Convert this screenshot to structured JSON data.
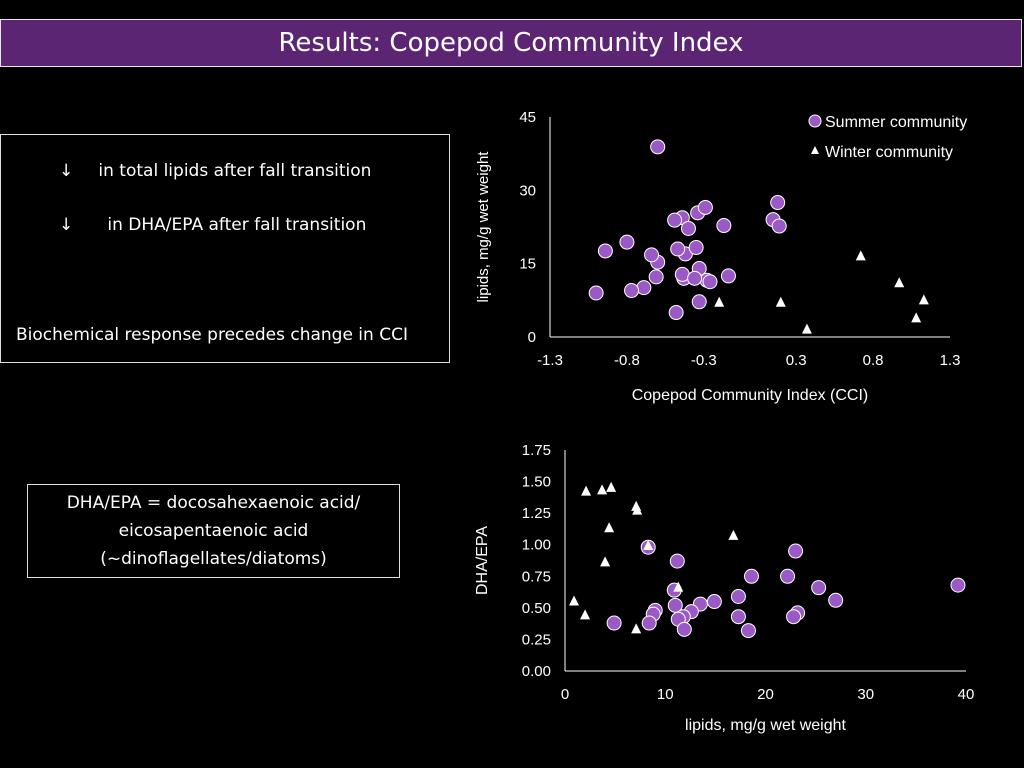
{
  "slide": {
    "title": "Results: Copepod Community Index"
  },
  "notes_box": {
    "line1_arrow": "↓",
    "line1": "in total lipids after fall transition",
    "line2_arrow": "↓",
    "line2": "in DHA/EPA after fall transition",
    "line3": "Biochemical response precedes change in CCI"
  },
  "definition_box": {
    "line1": "DHA/EPA = docosahexaenoic acid/",
    "line2": "eicosapentaenoic acid",
    "line3": "(~dinoflagellates/diatoms)"
  },
  "colors": {
    "title_bar": "#5c2574",
    "summer_marker": "#9b59c6",
    "winter_marker": "#ffffff",
    "axis": "#ffffff"
  },
  "chart_data": [
    {
      "type": "scatter",
      "title": "",
      "xlabel": "Copepod Community Index (CCI)",
      "ylabel": "lipids, mg/g wet weight",
      "xlim": [
        -1.3,
        1.3
      ],
      "ylim": [
        0,
        45
      ],
      "xticks": [
        -1.3,
        -0.8,
        -0.3,
        0.3,
        0.8,
        1.3
      ],
      "xtick_labels": [
        "-1.3",
        "-0.8",
        "-0.3",
        "0.3",
        "0.8",
        "1.3"
      ],
      "yticks": [
        0,
        15,
        30,
        45
      ],
      "ytick_labels": [
        "0",
        "15",
        "30",
        "45"
      ],
      "legend_position": "top-right",
      "series": [
        {
          "name": "Summer community",
          "marker": "circle",
          "points": [
            [
              -0.6,
              38.9
            ],
            [
              -0.44,
              24.4
            ],
            [
              -0.8,
              19.4
            ],
            [
              -0.69,
              10.1
            ],
            [
              -0.6,
              15.3
            ],
            [
              -0.4,
              22.2
            ],
            [
              -0.28,
              11.6
            ],
            [
              -0.33,
              14.0
            ],
            [
              -0.43,
              12.0
            ],
            [
              -0.14,
              12.5
            ],
            [
              -0.94,
              17.6
            ],
            [
              -0.42,
              17.0
            ],
            [
              -0.44,
              12.8
            ],
            [
              -0.36,
              12.0
            ],
            [
              -0.26,
              11.3
            ],
            [
              -0.35,
              18.3
            ],
            [
              -0.33,
              7.2
            ],
            [
              -0.34,
              25.4
            ],
            [
              -0.64,
              16.8
            ],
            [
              0.15,
              24.0
            ],
            [
              -0.29,
              26.5
            ],
            [
              -0.17,
              22.8
            ],
            [
              0.19,
              22.7
            ],
            [
              0.18,
              27.5
            ],
            [
              -0.48,
              5.0
            ],
            [
              -1.0,
              9.0
            ],
            [
              -0.77,
              9.5
            ],
            [
              -0.61,
              12.3
            ],
            [
              -0.47,
              18.0
            ],
            [
              -0.49,
              23.9
            ]
          ]
        },
        {
          "name": "Winter community",
          "marker": "triangle",
          "points": [
            [
              -0.2,
              7.0
            ],
            [
              0.2,
              7.0
            ],
            [
              0.37,
              1.5
            ],
            [
              0.72,
              16.5
            ],
            [
              0.97,
              11.0
            ],
            [
              1.08,
              3.8
            ],
            [
              1.13,
              7.5
            ]
          ]
        }
      ]
    },
    {
      "type": "scatter",
      "title": "",
      "xlabel": "lipids, mg/g wet weight",
      "ylabel": "DHA/EPA",
      "xlim": [
        0,
        40
      ],
      "ylim": [
        0,
        1.75
      ],
      "xticks": [
        0,
        10,
        20,
        30,
        40
      ],
      "xtick_labels": [
        "0",
        "10",
        "20",
        "30",
        "40"
      ],
      "yticks": [
        0,
        0.25,
        0.5,
        0.75,
        1.0,
        1.25,
        1.5,
        1.75
      ],
      "ytick_labels": [
        "0.00",
        "0.25",
        "0.50",
        "0.75",
        "1.00",
        "1.25",
        "1.50",
        "1.75"
      ],
      "series": [
        {
          "name": "Summer community",
          "marker": "circle",
          "points": [
            [
              39.2,
              0.68
            ],
            [
              23.0,
              0.95
            ],
            [
              8.3,
              0.98
            ],
            [
              11.2,
              0.87
            ],
            [
              18.6,
              0.75
            ],
            [
              22.2,
              0.75
            ],
            [
              25.3,
              0.66
            ],
            [
              10.9,
              0.64
            ],
            [
              27.0,
              0.56
            ],
            [
              17.3,
              0.59
            ],
            [
              14.9,
              0.55
            ],
            [
              13.5,
              0.53
            ],
            [
              11.0,
              0.52
            ],
            [
              9.0,
              0.48
            ],
            [
              12.6,
              0.47
            ],
            [
              8.8,
              0.45
            ],
            [
              23.2,
              0.46
            ],
            [
              17.3,
              0.43
            ],
            [
              11.8,
              0.43
            ],
            [
              22.8,
              0.43
            ],
            [
              11.3,
              0.41
            ],
            [
              4.9,
              0.38
            ],
            [
              8.4,
              0.38
            ],
            [
              11.9,
              0.33
            ],
            [
              18.3,
              0.32
            ]
          ]
        },
        {
          "name": "Winter community",
          "marker": "triangle",
          "points": [
            [
              2.1,
              1.42
            ],
            [
              3.7,
              1.43
            ],
            [
              4.6,
              1.45
            ],
            [
              7.1,
              1.3
            ],
            [
              7.2,
              1.27
            ],
            [
              4.4,
              1.13
            ],
            [
              16.8,
              1.07
            ],
            [
              8.3,
              0.99
            ],
            [
              4.0,
              0.86
            ],
            [
              11.3,
              0.66
            ],
            [
              0.9,
              0.55
            ],
            [
              2.0,
              0.44
            ],
            [
              7.1,
              0.33
            ]
          ]
        }
      ]
    }
  ]
}
